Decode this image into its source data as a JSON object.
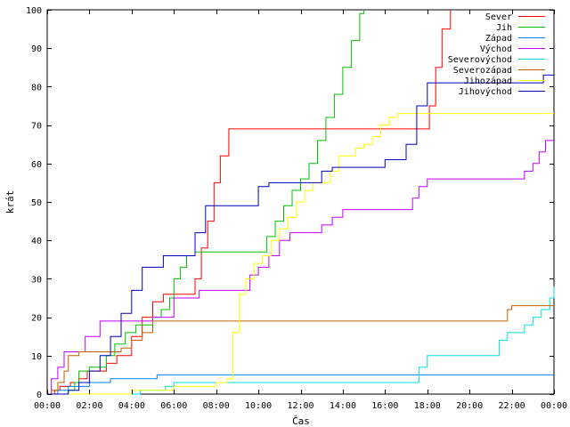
{
  "chart_data": {
    "type": "line",
    "xlabel": "Čas",
    "ylabel": "krát",
    "xlim": [
      0,
      24
    ],
    "ylim": [
      0,
      100
    ],
    "x_ticks": [
      0,
      2,
      4,
      6,
      8,
      10,
      12,
      14,
      16,
      18,
      20,
      22,
      24
    ],
    "x_tick_labels": [
      "00:00",
      "02:00",
      "04:00",
      "06:00",
      "08:00",
      "10:00",
      "12:00",
      "14:00",
      "16:00",
      "18:00",
      "20:00",
      "22:00",
      "00:00"
    ],
    "y_ticks": [
      0,
      10,
      20,
      30,
      40,
      50,
      60,
      70,
      80,
      90,
      100
    ],
    "grid": false,
    "legend_position": "top-right",
    "series": [
      {
        "name": "Sever",
        "color": "#ff0000",
        "x": [
          0,
          0.35,
          0.6,
          1.1,
          1.5,
          1.9,
          2.8,
          3.3,
          4.0,
          4.5,
          5.0,
          5.5,
          6.0,
          6.6,
          7.0,
          7.3,
          7.6,
          7.9,
          8.2,
          8.6,
          17.9,
          18.1,
          18.4,
          18.7,
          19.1
        ],
        "y": [
          0,
          1,
          2,
          3,
          4,
          6,
          8,
          10,
          15,
          20,
          24,
          26,
          26,
          26,
          30,
          38,
          45,
          55,
          62,
          69,
          69,
          75,
          85,
          95,
          100
        ]
      },
      {
        "name": "Jih",
        "color": "#00c000",
        "x": [
          0,
          1.0,
          1.3,
          1.5,
          2.0,
          2.8,
          3.2,
          3.7,
          4.2,
          5.0,
          5.4,
          5.8,
          6.0,
          6.3,
          6.6,
          7.0,
          10.0,
          10.4,
          10.8,
          11.2,
          11.6,
          12.0,
          12.4,
          12.8,
          13.2,
          13.6,
          14.0,
          14.4,
          14.8,
          15.0
        ],
        "y": [
          0,
          1,
          3,
          6,
          7,
          10,
          13,
          16,
          18,
          20,
          22,
          25,
          30,
          33,
          36,
          37,
          37,
          41,
          45,
          49,
          53,
          56,
          60,
          66,
          72,
          78,
          85,
          92,
          99,
          100
        ]
      },
      {
        "name": "Západ",
        "color": "#0080ff",
        "x": [
          0,
          0.5,
          1.0,
          2.0,
          3.0,
          4.0,
          5.0,
          5.2,
          6.0,
          8.0,
          10.0,
          12.0,
          14.0,
          16.0,
          18.0,
          20.0,
          22.0,
          24.0
        ],
        "y": [
          0,
          1,
          2,
          3,
          4,
          4,
          4,
          5,
          5,
          5,
          5,
          5,
          5,
          5,
          5,
          5,
          5,
          5
        ]
      },
      {
        "name": "Východ",
        "color": "#c000ff",
        "x": [
          0,
          0.2,
          0.5,
          0.8,
          1.3,
          1.8,
          2.5,
          3.5,
          4.5,
          5.0,
          6.0,
          6.6,
          7.2,
          8.0,
          9.0,
          9.6,
          10.0,
          10.5,
          11.0,
          11.5,
          12.0,
          13.0,
          13.5,
          14.0,
          15.0,
          16.0,
          17.0,
          17.3,
          17.6,
          18.0,
          19.0,
          20.0,
          21.0,
          22.0,
          22.6,
          23.0,
          23.3,
          23.6,
          24.0
        ],
        "y": [
          0,
          4,
          7,
          11,
          11,
          15,
          19,
          19,
          19,
          20,
          25,
          25,
          27,
          27,
          27,
          31,
          33,
          36,
          40,
          42,
          42,
          44,
          46,
          48,
          48,
          48,
          48,
          51,
          54,
          56,
          56,
          56,
          56,
          56,
          58,
          60,
          63,
          66,
          66
        ]
      },
      {
        "name": "Severovýchod",
        "color": "#00e0e0",
        "x": [
          0,
          4.2,
          4.4,
          5.0,
          5.4,
          5.6,
          6.0,
          8.0,
          10.0,
          12.0,
          14.0,
          16.0,
          17.4,
          17.6,
          18.0,
          18.5,
          19.0,
          20.0,
          21.0,
          21.4,
          21.8,
          22.2,
          22.6,
          23.0,
          23.4,
          23.8,
          24.0
        ],
        "y": [
          0,
          0,
          1,
          1,
          1,
          2,
          3,
          3,
          3,
          3,
          3,
          3,
          3,
          7,
          10,
          10,
          10,
          10,
          10,
          14,
          16,
          16,
          18,
          20,
          22,
          25,
          28
        ]
      },
      {
        "name": "Severozápad",
        "color": "#c06000",
        "x": [
          0,
          0.2,
          0.5,
          0.8,
          1.0,
          1.5,
          2.0,
          3.0,
          3.5,
          4.0,
          4.5,
          5.0,
          6.0,
          8.0,
          10.0,
          12.0,
          14.0,
          16.0,
          18.0,
          20.0,
          21.6,
          21.8,
          22.0,
          23.0,
          24.0
        ],
        "y": [
          0,
          1,
          3,
          6,
          10,
          11,
          11,
          11,
          12,
          14,
          16,
          19,
          19,
          19,
          19,
          19,
          19,
          19,
          19,
          19,
          19,
          22,
          23,
          23,
          23
        ]
      },
      {
        "name": "Jihozápad",
        "color": "#ffff00",
        "x": [
          0,
          4.0,
          6.0,
          8.0,
          8.5,
          8.8,
          9.1,
          9.4,
          9.8,
          10.2,
          10.6,
          11.0,
          11.4,
          11.8,
          12.2,
          12.6,
          13.0,
          13.4,
          13.8,
          14.2,
          14.6,
          15.0,
          15.4,
          15.8,
          16.2,
          16.6,
          17.0,
          17.5,
          24.0
        ],
        "y": [
          0,
          1,
          2,
          3,
          4,
          16,
          26,
          30,
          34,
          36,
          40,
          43,
          46,
          50,
          53,
          55,
          55,
          58,
          62,
          62,
          64,
          65,
          67,
          70,
          72,
          73,
          73,
          73,
          73
        ]
      },
      {
        "name": "Jihovýchod",
        "color": "#0000c0",
        "x": [
          0,
          1.0,
          1.5,
          2.0,
          2.5,
          3.0,
          3.5,
          4.0,
          4.5,
          5.0,
          5.5,
          6.0,
          6.5,
          7.0,
          7.5,
          8.0,
          8.5,
          9.0,
          9.5,
          10.0,
          10.5,
          11.0,
          11.5,
          12.0,
          12.5,
          13.0,
          13.5,
          14.0,
          14.5,
          15.0,
          15.5,
          16.0,
          16.5,
          17.0,
          17.5,
          18.0,
          18.5,
          19.0,
          19.5,
          20.0,
          20.5,
          21.0,
          21.5,
          22.0,
          22.5,
          23.0,
          23.5,
          24.0
        ],
        "y": [
          0,
          1,
          3,
          6,
          10,
          15,
          21,
          27,
          33,
          33,
          36,
          36,
          36,
          42,
          49,
          49,
          49,
          49,
          49,
          54,
          55,
          55,
          55,
          55,
          55,
          58,
          59,
          59,
          59,
          59,
          59,
          61,
          61,
          65,
          75,
          81,
          81,
          81,
          81,
          81,
          81,
          81,
          81,
          81,
          81,
          81,
          83,
          83
        ]
      }
    ]
  }
}
